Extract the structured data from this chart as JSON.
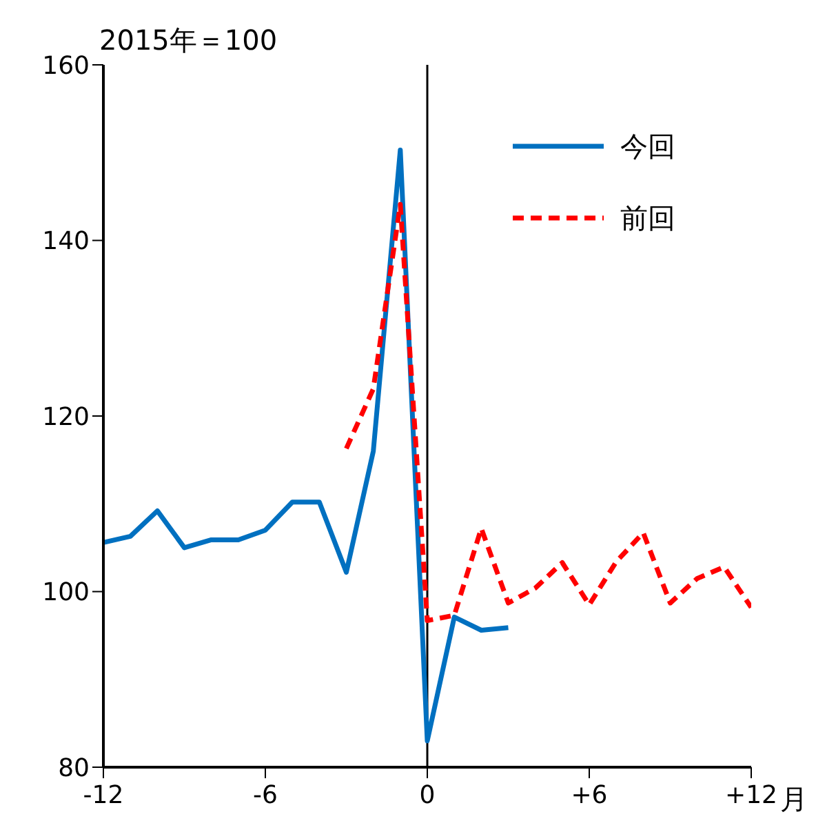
{
  "chart_data": {
    "type": "line",
    "ylabel": "2015年＝100",
    "xlabel": "月",
    "x": [
      -12,
      -11,
      -10,
      -9,
      -8,
      -7,
      -6,
      -5,
      -4,
      -3,
      -2,
      -1,
      0,
      1,
      2,
      3,
      4,
      5,
      6,
      7,
      8,
      9,
      10,
      11,
      12
    ],
    "series": [
      {
        "name": "今回",
        "color": "#0070c0",
        "line_style": "solid",
        "values": [
          105.6,
          106.3,
          109.2,
          105.0,
          105.9,
          105.9,
          107.0,
          110.2,
          110.2,
          102.2,
          116.0,
          150.3,
          83.0,
          97.1,
          95.6,
          95.9,
          null,
          null,
          null,
          null,
          null,
          null,
          null,
          null,
          null
        ]
      },
      {
        "name": "前回",
        "color": "#ff0000",
        "line_style": "dashed",
        "values": [
          null,
          null,
          null,
          null,
          null,
          null,
          null,
          null,
          null,
          116.3,
          123.1,
          144.1,
          96.7,
          97.3,
          107.2,
          98.7,
          100.4,
          103.3,
          98.5,
          103.4,
          106.7,
          98.7,
          101.5,
          102.8,
          98.2
        ]
      }
    ],
    "xlim": [
      -12,
      12
    ],
    "xticks": [
      -12,
      -6,
      0,
      {
        "value": 6,
        "label": "+6"
      },
      {
        "value": 12,
        "label": "+12"
      }
    ],
    "ylim": [
      80,
      160
    ],
    "yticks": [
      80,
      100,
      120,
      140,
      160
    ],
    "ref_lines": [
      {
        "axis": "x",
        "value": 0,
        "color": "#000000"
      }
    ],
    "grid": false,
    "legend": "top right",
    "marker": "none"
  }
}
